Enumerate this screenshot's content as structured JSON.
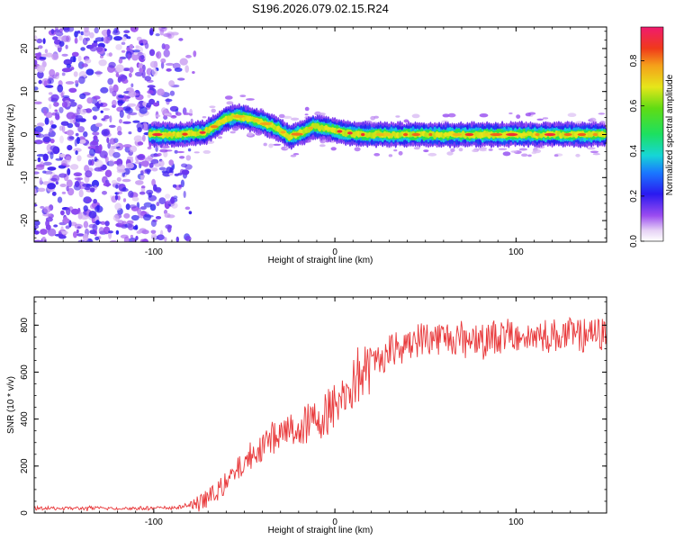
{
  "title": "S196.2026.079.02.15.R24",
  "chart_data": [
    {
      "type": "heatmap",
      "name": "spectrogram",
      "xlabel": "Height of straight line (km)",
      "ylabel": "Frequency (Hz)",
      "xlim": [
        -166,
        150
      ],
      "ylim": [
        -25,
        25
      ],
      "xticks": [
        -100,
        0,
        100
      ],
      "yticks": [
        -20,
        -10,
        0,
        10,
        20
      ],
      "colorbar": {
        "label": "Normalized spectral amplitude",
        "range": [
          0.0,
          0.95
        ],
        "ticks": [
          0.0,
          0.2,
          0.4,
          0.6,
          0.8
        ]
      },
      "ridge": [
        {
          "x": -100,
          "y": 0.0
        },
        {
          "x": -85,
          "y": 0.0
        },
        {
          "x": -72,
          "y": 0.5
        },
        {
          "x": -66,
          "y": 2.0
        },
        {
          "x": -60,
          "y": 3.8
        },
        {
          "x": -53,
          "y": 4.2
        },
        {
          "x": -45,
          "y": 3.5
        },
        {
          "x": -38,
          "y": 2.5
        },
        {
          "x": -30,
          "y": 1.0
        },
        {
          "x": -25,
          "y": -0.5
        },
        {
          "x": -18,
          "y": 0.5
        },
        {
          "x": -12,
          "y": 1.8
        },
        {
          "x": -5,
          "y": 1.5
        },
        {
          "x": 5,
          "y": 0.5
        },
        {
          "x": 15,
          "y": 0.0
        },
        {
          "x": 150,
          "y": 0.0
        }
      ]
    },
    {
      "type": "line",
      "name": "snr",
      "xlabel": "Height of straight line (km)",
      "ylabel": "SNR (10 * v/v)",
      "xlim": [
        -166,
        150
      ],
      "ylim": [
        0,
        920
      ],
      "xticks": [
        -100,
        0,
        100
      ],
      "yticks": [
        0,
        200,
        400,
        600,
        800
      ],
      "color": "#e8383a",
      "trend": [
        {
          "x": -166,
          "y": 20
        },
        {
          "x": -100,
          "y": 20
        },
        {
          "x": -85,
          "y": 25
        },
        {
          "x": -75,
          "y": 40
        },
        {
          "x": -65,
          "y": 90
        },
        {
          "x": -55,
          "y": 170
        },
        {
          "x": -45,
          "y": 260
        },
        {
          "x": -35,
          "y": 320
        },
        {
          "x": -25,
          "y": 350
        },
        {
          "x": -15,
          "y": 380
        },
        {
          "x": -5,
          "y": 420
        },
        {
          "x": 5,
          "y": 500
        },
        {
          "x": 15,
          "y": 590
        },
        {
          "x": 25,
          "y": 660
        },
        {
          "x": 35,
          "y": 720
        },
        {
          "x": 50,
          "y": 745
        },
        {
          "x": 80,
          "y": 750
        },
        {
          "x": 110,
          "y": 755
        },
        {
          "x": 150,
          "y": 760
        }
      ]
    }
  ]
}
